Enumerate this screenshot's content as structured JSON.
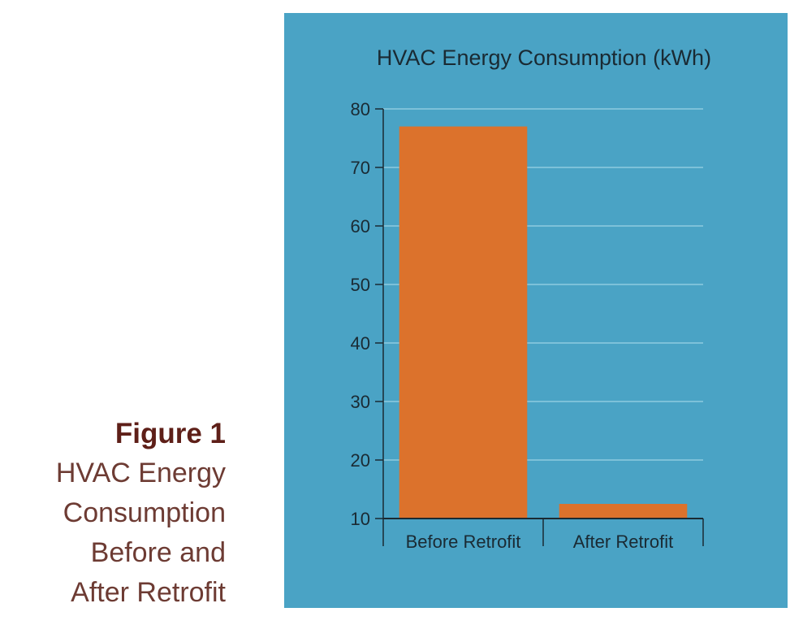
{
  "caption": {
    "figure_label": "Figure 1",
    "description_lines": [
      "HVAC Energy",
      "Consumption",
      "Before and",
      "After Retrofit"
    ]
  },
  "colors": {
    "panel_background": "#4aa3c5",
    "bar": "#dc722c",
    "caption_heading": "#5e1f18",
    "caption_text": "#6d3b33"
  },
  "chart_data": {
    "type": "bar",
    "title": "HVAC Energy Consumption (kWh)",
    "xlabel": "",
    "ylabel": "",
    "categories": [
      "Before Retrofit",
      "After Retrofit"
    ],
    "values": [
      77,
      12.5
    ],
    "ylim": [
      10,
      80
    ],
    "yticks": [
      10,
      20,
      30,
      40,
      50,
      60,
      70,
      80
    ],
    "grid": true,
    "legend": "none"
  }
}
